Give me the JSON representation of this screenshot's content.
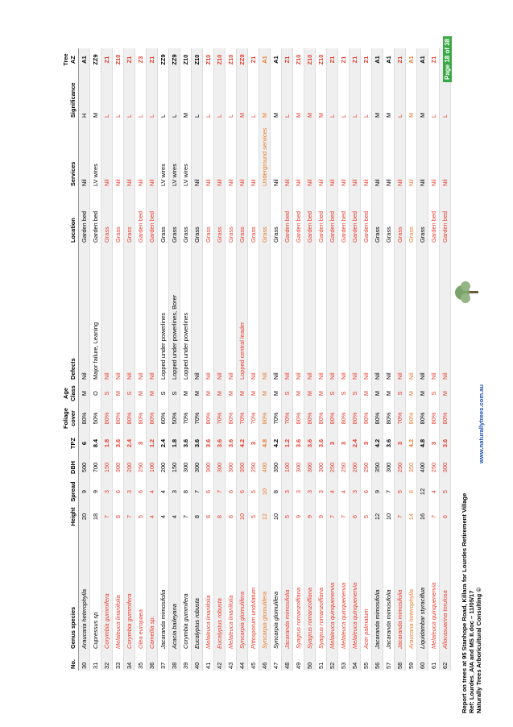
{
  "table": {
    "header": [
      "No.",
      "Genus species",
      "Height",
      "Spread",
      "DBH",
      "TPZ",
      "Foliage cover",
      "Age Class",
      "Defects",
      "Location",
      "Services",
      "Significance",
      "Tree AZ"
    ],
    "rows": [
      [
        "30",
        "Araucaria heterophylla",
        "20",
        "9",
        "500",
        "6",
        "80%",
        "M",
        "Nil",
        "Garden bed",
        "Nil",
        "H",
        "A1"
      ],
      [
        "31",
        "Cupressus sp.",
        "18",
        "9",
        "700",
        "8.4",
        "50%",
        "O",
        "Major failure, Leaning",
        "Garden bed",
        "LV wires",
        "M",
        "ZZ9"
      ],
      [
        "32",
        "Corymbia gummifera",
        "7",
        "3",
        "150",
        "1.8",
        "80%",
        "S",
        "Nil",
        "Grass",
        "Nil",
        "L",
        "Z1"
      ],
      [
        "33",
        "Melaleuca linariifolia",
        "8",
        "6",
        "300",
        "3.6",
        "80%",
        "M",
        "Nil",
        "Grass",
        "Nil",
        "L",
        "Z10"
      ],
      [
        "34",
        "Corymbia gummifera",
        "7",
        "3",
        "200",
        "2.4",
        "80%",
        "S",
        "Nil",
        "Grass",
        "Nil",
        "L",
        "Z1"
      ],
      [
        "35",
        "Olea europaea",
        "5",
        "6",
        "250",
        "3",
        "80%",
        "M",
        "Nil",
        "Garden bed",
        "Nil",
        "L",
        "Z3"
      ],
      [
        "36",
        "Camellia sp.",
        "4",
        "4",
        "100",
        "1.2",
        "80%",
        "M",
        "Nil",
        "Garden bed",
        "Nil",
        "L",
        "Z1"
      ],
      [
        "37",
        "Jacaranda mimosifolia",
        "4",
        "4",
        "200",
        "2.4",
        "60%",
        "S",
        "Lopped under powerlines",
        "Grass",
        "LV wires",
        "L",
        "ZZ9"
      ],
      [
        "38",
        "Acacia baileyana",
        "4",
        "3",
        "150",
        "1.8",
        "50%",
        "S",
        "Lopped under powerlines, Borer",
        "Grass",
        "LV wires",
        "L",
        "ZZ9"
      ],
      [
        "39",
        "Corymbia gummifera",
        "7",
        "8",
        "300",
        "3.6",
        "70%",
        "M",
        "Lopped under powerlines",
        "Grass",
        "LV wires",
        "M",
        "Z10"
      ],
      [
        "40",
        "Eucalyptus robusta",
        "8",
        "7",
        "300",
        "3.6",
        "70%",
        "M",
        "Nil",
        "Grass",
        "Nil",
        "L",
        "Z10"
      ],
      [
        "41",
        "Melaleuca linariifolia",
        "8",
        "6",
        "300",
        "3.6",
        "80%",
        "M",
        "Nil",
        "Grass",
        "Nil",
        "L",
        "Z10"
      ],
      [
        "42",
        "Eucalyptus robusta",
        "8",
        "7",
        "300",
        "3.6",
        "70%",
        "M",
        "Nil",
        "Grass",
        "Nil",
        "L",
        "Z10"
      ],
      [
        "43",
        "Melaleuca linariifolia",
        "8",
        "6",
        "300",
        "3.6",
        "80%",
        "M",
        "Nil",
        "Grass",
        "Nil",
        "L",
        "Z10"
      ],
      [
        "44",
        "Syncarpia glomulifera",
        "10",
        "6",
        "350",
        "4.2",
        "70%",
        "M",
        "Lopped central leader",
        "Grass",
        "Nil",
        "M",
        "ZZ9"
      ],
      [
        "45",
        "Pittosporum undulatum",
        "5",
        "5",
        "250",
        "3",
        "70%",
        "M",
        "Nil",
        "Grass",
        "Nil",
        "L",
        "Z1"
      ],
      [
        "46",
        "Syncarpia glomulifera",
        "12",
        "10",
        "400",
        "4.8",
        "80%",
        "M",
        "Nil",
        "Grass",
        "Underground services",
        "M",
        "A1"
      ],
      [
        "47",
        "Syncarpia glomulifera",
        "10",
        "8",
        "350",
        "4.2",
        "70%",
        "M",
        "Nil",
        "Grass",
        "Nil",
        "M",
        "A1"
      ],
      [
        "48",
        "Jacaranda mimosifolia",
        "5",
        "3",
        "100",
        "1.2",
        "70%",
        "S",
        "Nil",
        "Garden bed",
        "Nil",
        "L",
        "Z1"
      ],
      [
        "49",
        "Syagrus romanzoffiana",
        "9",
        "3",
        "300",
        "3.6",
        "80%",
        "M",
        "Nil",
        "Garden bed",
        "Nil",
        "M",
        "Z10"
      ],
      [
        "50",
        "Syagrus romanzoffiana",
        "9",
        "3",
        "300",
        "3.6",
        "80%",
        "M",
        "Nil",
        "Garden bed",
        "Nil",
        "M",
        "Z10"
      ],
      [
        "51",
        "Syagrus romanzoffiana",
        "9",
        "3",
        "300",
        "3.6",
        "80%",
        "M",
        "Nil",
        "Garden bed",
        "Nil",
        "M",
        "Z10"
      ],
      [
        "52",
        "Melaleuca quinquenervia",
        "7",
        "4",
        "250",
        "3",
        "80%",
        "S",
        "Nil",
        "Garden bed",
        "Nil",
        "L",
        "Z1"
      ],
      [
        "53",
        "Melaleuca quinquenervia",
        "7",
        "4",
        "250",
        "3",
        "80%",
        "S",
        "Nil",
        "Garden bed",
        "Nil",
        "L",
        "Z1"
      ],
      [
        "54",
        "Melaleuca quinquenervia",
        "6",
        "3",
        "200",
        "2.4",
        "80%",
        "S",
        "Nil",
        "Garden bed",
        "Nil",
        "L",
        "Z1"
      ],
      [
        "55",
        "Acer palmatum",
        "5",
        "6",
        "250",
        "3",
        "90%",
        "M",
        "Nil",
        "Garden bed",
        "Nil",
        "L",
        "Z1"
      ],
      [
        "56",
        "Jacaranda mimosifolia",
        "12",
        "9",
        "350",
        "4.2",
        "80%",
        "M",
        "Nil",
        "Grass",
        "Nil",
        "M",
        "A1"
      ],
      [
        "57",
        "Jacaranda mimosifolia",
        "10",
        "7",
        "300",
        "3.6",
        "80%",
        "M",
        "Nil",
        "Grass",
        "Nil",
        "M",
        "A1"
      ],
      [
        "58",
        "Jacaranda mimosifolia",
        "7",
        "5",
        "250",
        "3",
        "70%",
        "S",
        "Nil",
        "Grass",
        "Nil",
        "L",
        "Z1"
      ],
      [
        "59",
        "Araucaria heterophylla",
        "14",
        "6",
        "350",
        "4.2",
        "80%",
        "M",
        "Nil",
        "Grass",
        "Nil",
        "M",
        "A1"
      ],
      [
        "60",
        "Liquidambar styraciflua",
        "16",
        "12",
        "400",
        "4.8",
        "80%",
        "M",
        "Nil",
        "Grass",
        "Nil",
        "M",
        "A1"
      ],
      [
        "61",
        "Melaleuca quinquenervia",
        "7",
        "4",
        "250",
        "3",
        "80%",
        "S",
        "Nil",
        "Garden bed",
        "Nil",
        "L",
        "Z1"
      ],
      [
        "62",
        "Allocasuarina torulosa",
        "6",
        "5",
        "300",
        "3.6",
        "80%",
        "M",
        "Nil",
        "Garden bed",
        "Nil",
        "L",
        "Z1"
      ]
    ]
  },
  "footer": {
    "lines": [
      "Report on trees at 95 Stanhope Road, Killara for Lourdes Retirement Village",
      "Ref: Lourdes_AIA and MS II.doc – 11/05/17",
      "Naturally Trees Arboricultural Consulting ©"
    ],
    "url": "www.naturallytrees.com.au",
    "page": "Page 18 of 38"
  }
}
